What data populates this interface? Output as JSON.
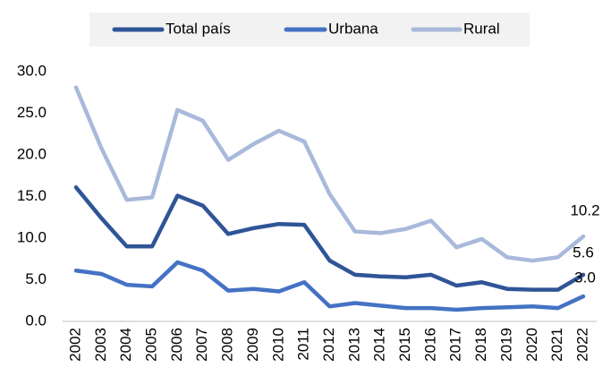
{
  "chart_data": {
    "type": "line",
    "categories": [
      "2002",
      "2003",
      "2004",
      "2005",
      "2006",
      "2007",
      "2008",
      "2009",
      "2010",
      "2011",
      "2012",
      "2013",
      "2014",
      "2015",
      "2016",
      "2017",
      "2018",
      "2019",
      "2020",
      "2021",
      "2022"
    ],
    "series": [
      {
        "name": "Total país",
        "color": "#2f5597",
        "values": [
          16.1,
          12.4,
          9.0,
          9.0,
          15.1,
          13.9,
          10.5,
          11.2,
          11.7,
          11.6,
          7.3,
          5.6,
          5.4,
          5.3,
          5.6,
          4.3,
          4.7,
          3.9,
          3.8,
          3.8,
          5.6
        ],
        "value_labels": [
          null,
          null,
          null,
          null,
          null,
          null,
          null,
          null,
          null,
          null,
          null,
          null,
          null,
          null,
          null,
          null,
          null,
          null,
          null,
          null,
          "5.6"
        ]
      },
      {
        "name": "Urbana",
        "color": "#4472c4",
        "values": [
          6.1,
          5.7,
          4.4,
          4.2,
          7.1,
          6.1,
          3.7,
          3.9,
          3.6,
          4.7,
          1.8,
          2.2,
          1.9,
          1.6,
          1.6,
          1.4,
          1.6,
          1.7,
          1.8,
          1.6,
          3.0
        ],
        "value_labels": [
          null,
          null,
          null,
          null,
          null,
          null,
          null,
          null,
          null,
          null,
          null,
          null,
          null,
          null,
          null,
          null,
          null,
          null,
          null,
          null,
          "3.0"
        ]
      },
      {
        "name": "Rural",
        "color": "#a9b9dc",
        "values": [
          28.1,
          20.8,
          14.6,
          14.9,
          25.4,
          24.1,
          19.4,
          21.3,
          22.9,
          21.6,
          15.3,
          10.8,
          10.6,
          11.1,
          12.1,
          8.9,
          9.9,
          7.7,
          7.3,
          7.7,
          10.2
        ],
        "value_labels": [
          null,
          null,
          null,
          null,
          null,
          null,
          null,
          null,
          null,
          null,
          null,
          null,
          null,
          null,
          null,
          null,
          null,
          null,
          null,
          null,
          "10.2"
        ]
      }
    ],
    "ylim": [
      0,
      30
    ],
    "yticks": [
      {
        "value": 0,
        "label": "0.0"
      },
      {
        "value": 5,
        "label": "5.0"
      },
      {
        "value": 10,
        "label": "10.0"
      },
      {
        "value": 15,
        "label": "15.0"
      },
      {
        "value": 20,
        "label": "20.0"
      },
      {
        "value": 25,
        "label": "25.0"
      },
      {
        "value": 30,
        "label": "30.0"
      }
    ],
    "grid": false,
    "legend": "top"
  }
}
